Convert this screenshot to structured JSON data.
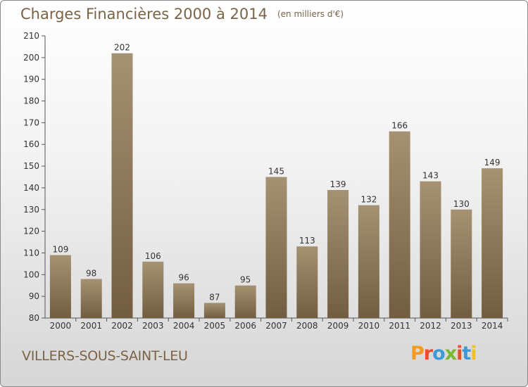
{
  "title": "Charges Financières 2000 à 2014",
  "subtitle": "(en milliers d'€)",
  "commune": "VILLERS-SOUS-SAINT-LEU",
  "logo": {
    "letters": [
      "P",
      "r",
      "o",
      "x",
      "i",
      "t",
      "i"
    ],
    "colors": [
      "#f39a1f",
      "#e8502a",
      "#3c9ad6",
      "#7ab833",
      "#e8502a",
      "#3c9ad6",
      "#f3c21f"
    ]
  },
  "chart_data": {
    "type": "bar",
    "title": "Charges Financières 2000 à 2014",
    "subtitle": "(en milliers d'€)",
    "categories": [
      "2000",
      "2001",
      "2002",
      "2003",
      "2004",
      "2005",
      "2006",
      "2007",
      "2008",
      "2009",
      "2010",
      "2011",
      "2012",
      "2013",
      "2014"
    ],
    "values": [
      109,
      98,
      202,
      106,
      96,
      87,
      95,
      145,
      113,
      139,
      132,
      166,
      143,
      130,
      149
    ],
    "ylim": [
      80,
      210
    ],
    "yticks": [
      80,
      90,
      100,
      110,
      120,
      130,
      140,
      150,
      160,
      170,
      180,
      190,
      200,
      210
    ],
    "grid": false,
    "data_labels": true,
    "bar_color": "#8f7a58"
  }
}
